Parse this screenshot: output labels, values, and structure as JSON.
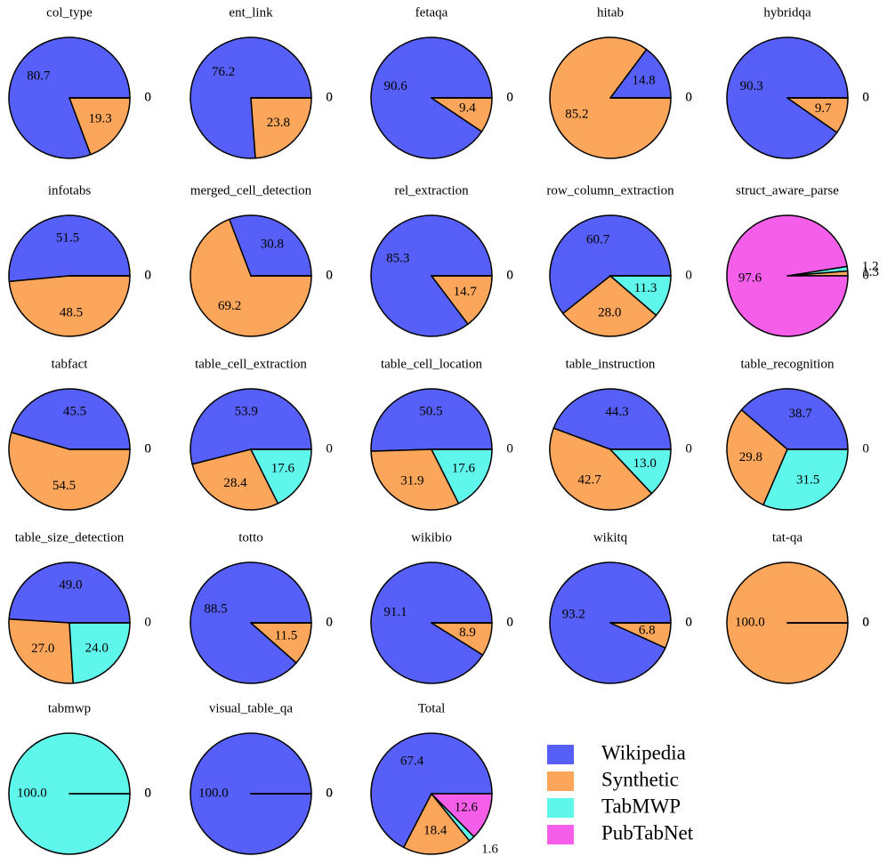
{
  "legend": {
    "categories": [
      "Wikipedia",
      "Synthetic",
      "TabMWP",
      "PubTabNet"
    ],
    "colors": [
      "#5660f8",
      "#fba65a",
      "#5ff6ec",
      "#f55ee8"
    ]
  },
  "chart_data": [
    {
      "type": "pie",
      "title": "col_type",
      "values": [
        80.7,
        19.3,
        0,
        0
      ],
      "value_labels": [
        "80.7",
        "19.3",
        "0",
        "0"
      ]
    },
    {
      "type": "pie",
      "title": "ent_link",
      "values": [
        76.2,
        23.8,
        0,
        0
      ],
      "value_labels": [
        "76.2",
        "23.8",
        "0",
        "0"
      ]
    },
    {
      "type": "pie",
      "title": "fetaqa",
      "values": [
        90.6,
        9.4,
        0,
        0
      ],
      "value_labels": [
        "90.6",
        "9.4",
        "0",
        "0"
      ]
    },
    {
      "type": "pie",
      "title": "hitab",
      "values": [
        14.8,
        85.2,
        0,
        0
      ],
      "value_labels": [
        "14.8",
        "85.2",
        "0",
        "0"
      ]
    },
    {
      "type": "pie",
      "title": "hybridqa",
      "values": [
        90.3,
        9.7,
        0,
        0
      ],
      "value_labels": [
        "90.3",
        "9.7",
        "0",
        "0"
      ]
    },
    {
      "type": "pie",
      "title": "infotabs",
      "values": [
        51.5,
        48.5,
        0,
        0
      ],
      "value_labels": [
        "51.5",
        "48.5",
        "0",
        "0"
      ]
    },
    {
      "type": "pie",
      "title": "merged_cell_detection",
      "values": [
        30.8,
        69.2,
        0,
        0
      ],
      "value_labels": [
        "30.8",
        "69.2",
        "0",
        "0"
      ]
    },
    {
      "type": "pie",
      "title": "rel_extraction",
      "values": [
        85.3,
        14.7,
        0,
        0
      ],
      "value_labels": [
        "85.3",
        "14.7",
        "0",
        "0"
      ]
    },
    {
      "type": "pie",
      "title": "row_column_extraction",
      "values": [
        60.7,
        28.0,
        11.3,
        0
      ],
      "value_labels": [
        "60.7",
        "28.0",
        "11.3",
        "0"
      ]
    },
    {
      "type": "pie",
      "title": "struct_aware_parse",
      "values": [
        0,
        1.3,
        1.2,
        97.6
      ],
      "value_labels": [
        "0",
        "1.3",
        "1.2",
        "97.6"
      ]
    },
    {
      "type": "pie",
      "title": "tabfact",
      "values": [
        45.5,
        54.5,
        0,
        0
      ],
      "value_labels": [
        "45.5",
        "54.5",
        "0",
        "0"
      ]
    },
    {
      "type": "pie",
      "title": "table_cell_extraction",
      "values": [
        53.9,
        28.4,
        17.6,
        0
      ],
      "value_labels": [
        "53.9",
        "28.4",
        "17.6",
        "0"
      ]
    },
    {
      "type": "pie",
      "title": "table_cell_location",
      "values": [
        50.5,
        31.9,
        17.6,
        0
      ],
      "value_labels": [
        "50.5",
        "31.9",
        "17.6",
        "0"
      ]
    },
    {
      "type": "pie",
      "title": "table_instruction",
      "values": [
        44.3,
        42.7,
        13.0,
        0
      ],
      "value_labels": [
        "44.3",
        "42.7",
        "13.0",
        "0"
      ]
    },
    {
      "type": "pie",
      "title": "table_recognition",
      "values": [
        38.7,
        29.8,
        31.5,
        0
      ],
      "value_labels": [
        "38.7",
        "29.8",
        "31.5",
        "0"
      ]
    },
    {
      "type": "pie",
      "title": "table_size_detection",
      "values": [
        49.0,
        27.0,
        24.0,
        0
      ],
      "value_labels": [
        "49.0",
        "27.0",
        "24.0",
        "0"
      ]
    },
    {
      "type": "pie",
      "title": "totto",
      "values": [
        88.5,
        11.5,
        0,
        0
      ],
      "value_labels": [
        "88.5",
        "11.5",
        "0",
        "0"
      ]
    },
    {
      "type": "pie",
      "title": "wikibio",
      "values": [
        91.1,
        8.9,
        0,
        0
      ],
      "value_labels": [
        "91.1",
        "8.9",
        "0",
        "0"
      ]
    },
    {
      "type": "pie",
      "title": "wikitq",
      "values": [
        93.2,
        6.8,
        0,
        0
      ],
      "value_labels": [
        "93.2",
        "6.8",
        "0",
        "0"
      ]
    },
    {
      "type": "pie",
      "title": "tat-qa",
      "values": [
        0,
        100,
        0,
        0
      ],
      "value_labels": [
        "0",
        "100.0",
        "0",
        "0"
      ]
    },
    {
      "type": "pie",
      "title": "tabmwp",
      "values": [
        0,
        0,
        100,
        0
      ],
      "value_labels": [
        "0",
        "0",
        "100.0",
        "0"
      ]
    },
    {
      "type": "pie",
      "title": "visual_table_qa",
      "values": [
        100,
        0,
        0,
        0
      ],
      "value_labels": [
        "100.0",
        "0",
        "0",
        "0"
      ]
    },
    {
      "type": "pie",
      "title": "Total",
      "values": [
        67.4,
        18.4,
        1.6,
        12.6
      ],
      "value_labels": [
        "67.4",
        "18.4",
        "1.6",
        "12.6"
      ]
    }
  ]
}
